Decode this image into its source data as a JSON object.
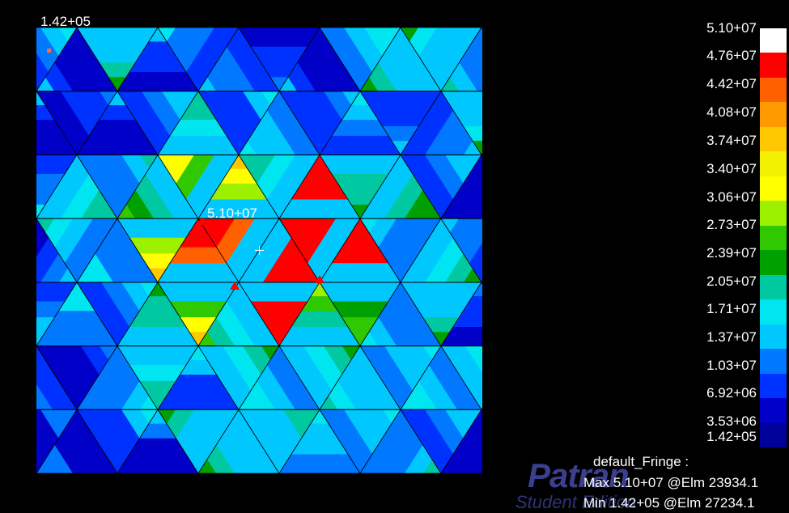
{
  "viewport": {
    "corner_label": "1.42+05",
    "max_label": "5.10+07"
  },
  "legend": {
    "ticks": [
      "5.10+07",
      "4.76+07",
      "4.42+07",
      "4.08+07",
      "3.74+07",
      "3.40+07",
      "3.06+07",
      "2.73+07",
      "2.39+07",
      "2.05+07",
      "1.71+07",
      "1.37+07",
      "1.03+07",
      "6.92+06",
      "3.53+06",
      "1.42+05"
    ],
    "colors": [
      "#ffffff",
      "#ff0000",
      "#ff6000",
      "#ff9a00",
      "#ffc800",
      "#f0f000",
      "#ffff00",
      "#9cf000",
      "#30c800",
      "#00a000",
      "#00c8a0",
      "#00e6f0",
      "#00c8ff",
      "#0078ff",
      "#0032ff",
      "#0000c8",
      "#00009a"
    ]
  },
  "fringe": {
    "title": "default_Fringe :",
    "max": "Max 5.10+07 @Elm 23934.1",
    "min": "Min 1.42+05 @Elm 27234.1"
  },
  "watermark": {
    "logo": "Patran",
    "sub": "Student Edition"
  }
}
